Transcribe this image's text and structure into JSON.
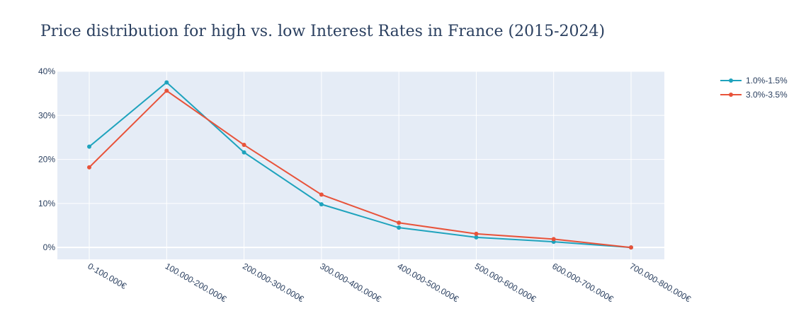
{
  "chart_data": {
    "type": "line",
    "title": "Price distribution for high vs. low Interest Rates in France (2015-2024)",
    "xlabel": "",
    "ylabel": "",
    "categories": [
      "0-100.000€",
      "100.000-200.000€",
      "200.000-300.000€",
      "300.000-400.000€",
      "400.000-500.000€",
      "500.000-600.000€",
      "600.000-700.000€",
      "700.000-800.000€"
    ],
    "series": [
      {
        "name": "1.0%-1.5%",
        "color": "#1fa3bd",
        "values": [
          22.9,
          37.5,
          21.6,
          9.8,
          4.5,
          2.3,
          1.3,
          0.0
        ]
      },
      {
        "name": "3.0%-3.5%",
        "color": "#e8533a",
        "values": [
          18.2,
          35.6,
          23.3,
          12.0,
          5.6,
          3.1,
          1.9,
          0.0
        ]
      }
    ],
    "ylim": [
      -2.7,
      40
    ],
    "yticks": [
      0,
      10,
      20,
      30,
      40
    ],
    "ytick_labels": [
      "0%",
      "10%",
      "20%",
      "30%",
      "40%"
    ],
    "grid": true,
    "legend_position": "top-right",
    "plot_bgcolor": "#e5ecf6"
  }
}
